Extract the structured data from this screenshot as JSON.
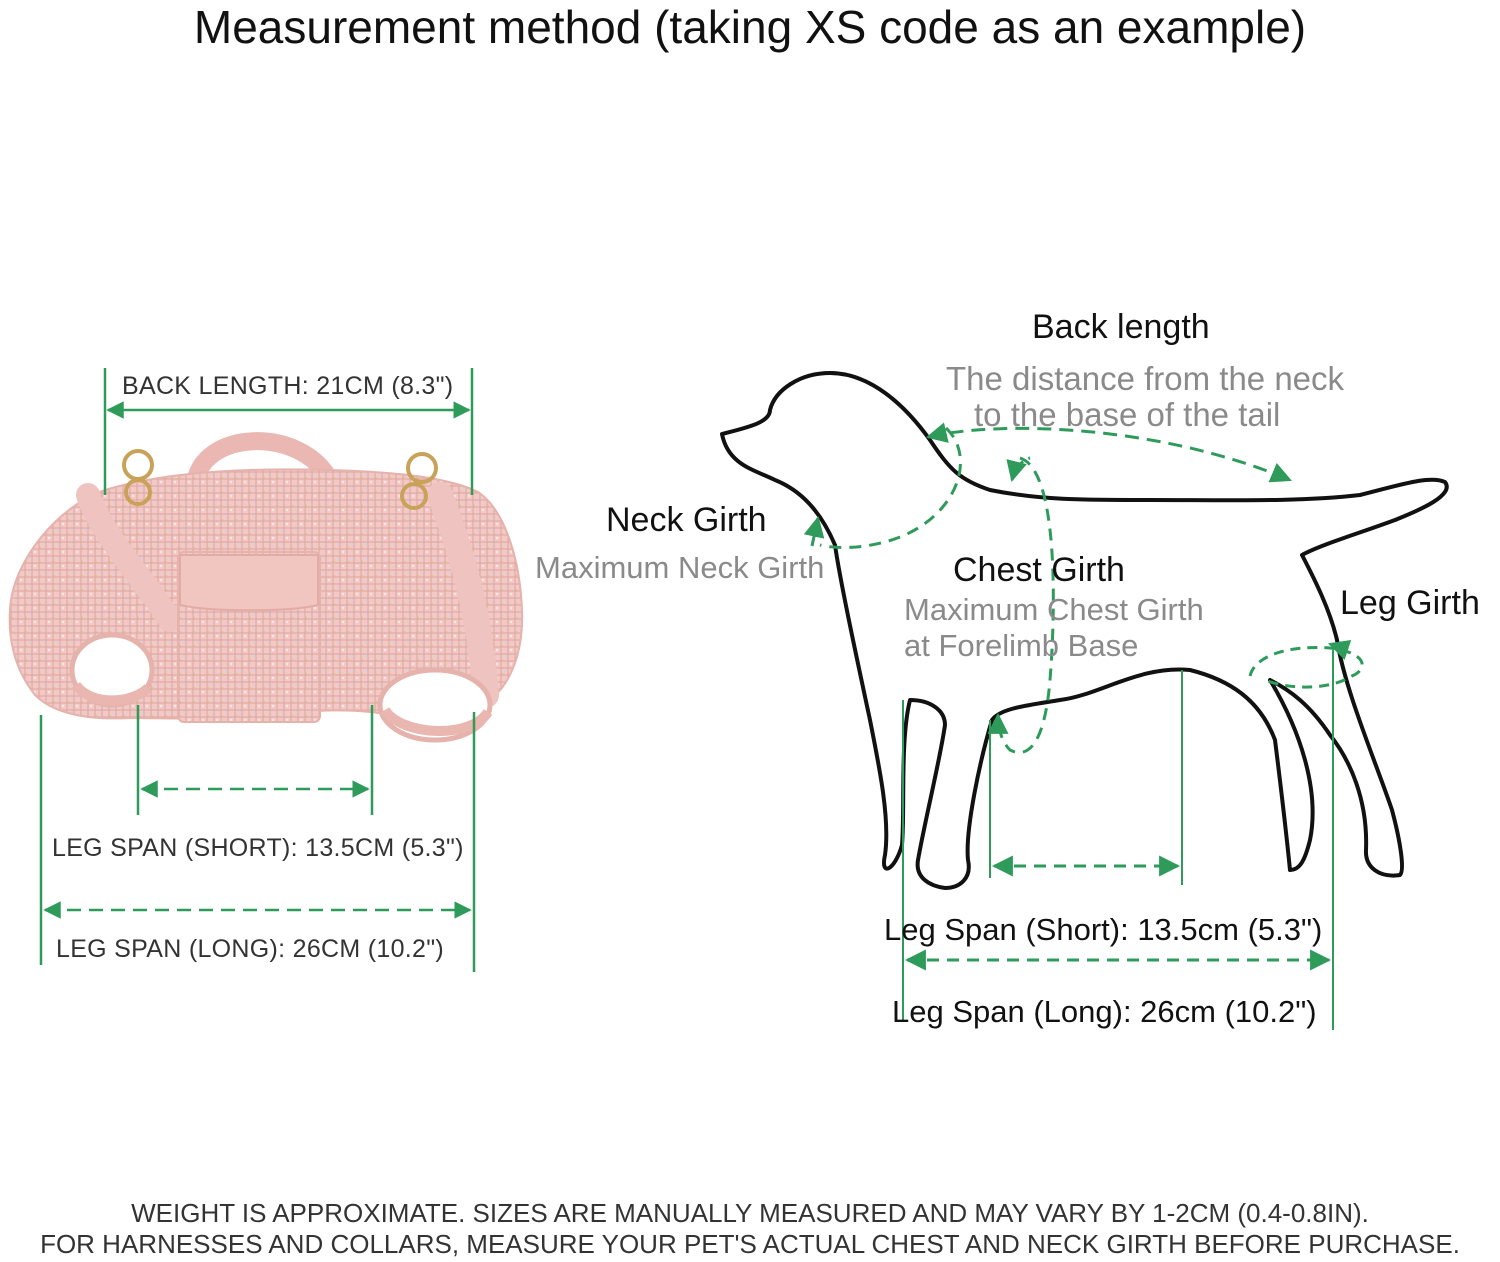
{
  "title": "Measurement method (taking XS code as an example)",
  "harness": {
    "back_length_label": "BACK LENGTH: 21CM (8.3\")",
    "leg_span_short_label": "LEG SPAN (SHORT): 13.5CM (5.3\")",
    "leg_span_long_label": "LEG SPAN (LONG): 26CM (10.2\")",
    "colors": {
      "fabric": "#f2c9c6",
      "strap": "#efc3bf",
      "ring": "#c9a25a",
      "measure": "#2e9b5a"
    }
  },
  "dog": {
    "back_length_title": "Back length",
    "back_length_desc_1": "The distance from the neck",
    "back_length_desc_2": "to the base of the tail",
    "neck_girth_title": "Neck Girth",
    "neck_girth_desc": "Maximum Neck Girth",
    "chest_girth_title": "Chest Girth",
    "chest_girth_desc_1": "Maximum Chest Girth",
    "chest_girth_desc_2": "at Forelimb Base",
    "leg_girth_title": "Leg Girth",
    "leg_span_short_label": "Leg Span (Short): 13.5cm (5.3\")",
    "leg_span_long_label": "Leg Span (Long): 26cm (10.2\")"
  },
  "footer": {
    "line_1": "WEIGHT IS APPROXIMATE. SIZES ARE MANUALLY MEASURED AND MAY VARY BY 1-2CM (0.4-0.8IN).",
    "line_2": "FOR HARNESSES AND COLLARS, MEASURE YOUR PET'S ACTUAL CHEST AND NECK GIRTH BEFORE PURCHASE."
  }
}
